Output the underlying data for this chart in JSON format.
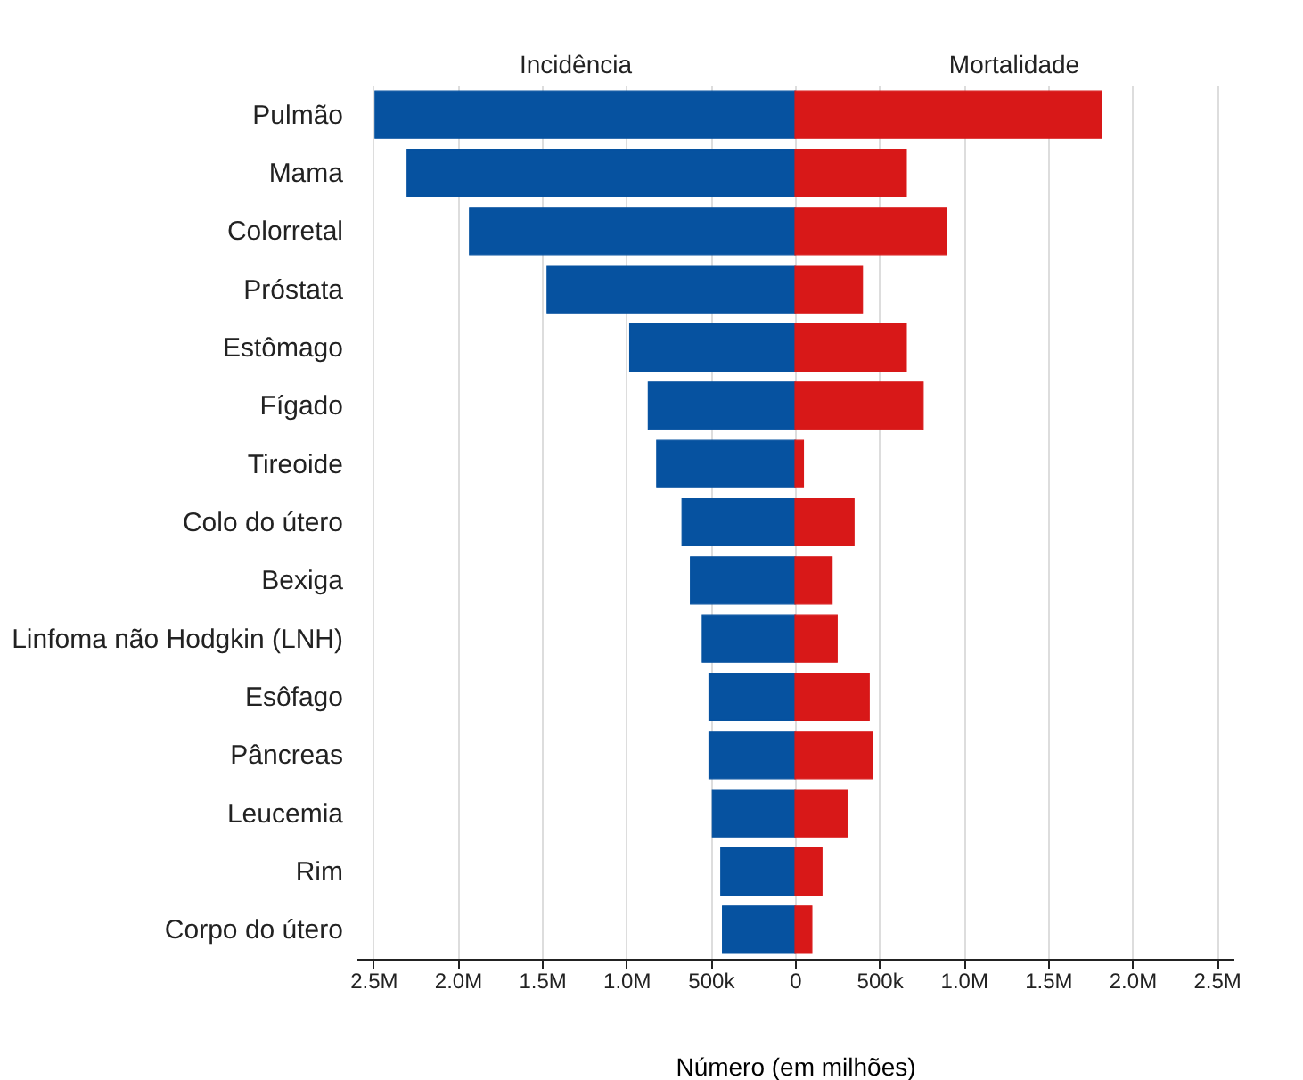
{
  "chart_data": {
    "type": "bar",
    "orientation": "horizontal",
    "xlabel": "Número (em milhões)",
    "categories": [
      "Pulmão",
      "Mama",
      "Colorretal",
      "Próstata",
      "Estômago",
      "Fígado",
      "Tireoide",
      "Colo do útero",
      "Bexiga",
      "Linfoma não Hodgkin (LNH)",
      "Esôfago",
      "Pâncreas",
      "Leucemia",
      "Rim",
      "Corpo do útero"
    ],
    "series": [
      {
        "name": "Incidência",
        "color": "#0652a0",
        "values": [
          -2490000,
          -2300000,
          -1930000,
          -1470000,
          -980000,
          -870000,
          -820000,
          -670000,
          -620000,
          -550000,
          -510000,
          -510000,
          -490000,
          -440000,
          -430000
        ]
      },
      {
        "name": "Mortalidade",
        "color": "#d81818",
        "values": [
          1820000,
          660000,
          900000,
          400000,
          660000,
          760000,
          50000,
          350000,
          220000,
          250000,
          440000,
          460000,
          310000,
          160000,
          100000
        ]
      }
    ],
    "xlim": [
      -2600000,
      2600000
    ],
    "xticks": [
      {
        "value": -2500000,
        "label": "2.5M"
      },
      {
        "value": -2000000,
        "label": "2.0M"
      },
      {
        "value": -1500000,
        "label": "1.5M"
      },
      {
        "value": -1000000,
        "label": "1.0M"
      },
      {
        "value": -500000,
        "label": "500k"
      },
      0,
      {
        "value": 500000,
        "label": "500k"
      },
      {
        "value": 1000000,
        "label": "1.0M"
      },
      {
        "value": 1500000,
        "label": "1.5M"
      },
      {
        "value": 2000000,
        "label": "2.0M"
      },
      {
        "value": 2500000,
        "label": "2.5M"
      }
    ],
    "grid": "x",
    "legend": false,
    "stacked": true
  }
}
